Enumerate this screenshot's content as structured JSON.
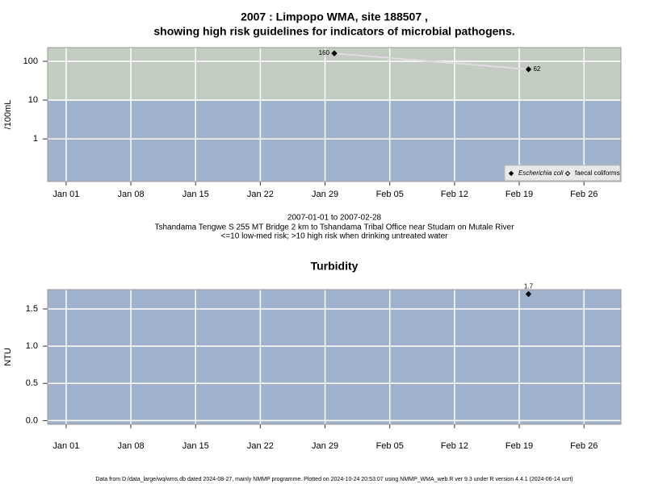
{
  "chart_data": [
    {
      "type": "scatter",
      "log_y": true,
      "title": [
        "2007 : Limpopo WMA, site 188507 ,",
        "showing high risk guidelines for indicators of microbial pathogens."
      ],
      "ylabel": "/100mL",
      "caption": [
        "2007-01-01 to 2007-02-28",
        "Tshandama Tengwe S 255 MT Bridge 2 km to Tshandama Tribal Office near Studam on Mutale River",
        "<=10 low-med risk; >10 high risk when drinking untreated water"
      ],
      "x": [
        "Jan 30",
        "Feb 20"
      ],
      "series": [
        {
          "name": "Escherichia coli",
          "color": "#000000",
          "marker": "filled",
          "line_color": "#dddddd",
          "values": [
            160,
            62
          ]
        },
        {
          "name": "faecal coliforms",
          "color": "#000000",
          "marker": "open",
          "values": [
            null,
            null
          ]
        }
      ],
      "xlim": [
        "Dec 30",
        "Mar 02"
      ],
      "xticks": [
        "Jan 01",
        "Jan 08",
        "Jan 15",
        "Jan 22",
        "Jan 29",
        "Feb 05",
        "Feb 12",
        "Feb 19",
        "Feb 26"
      ],
      "ylim": [
        0.08,
        225
      ],
      "yticks": [
        1,
        10,
        100
      ],
      "bands": {
        "threshold": 10,
        "above": "#c2ccc0",
        "below": "#a1b3cc"
      },
      "grid": true,
      "legend": "bottom-right"
    },
    {
      "type": "scatter",
      "log_y": false,
      "title": [
        "Turbidity"
      ],
      "ylabel": "NTU",
      "x": [
        "Feb 20"
      ],
      "series": [
        {
          "name": "Turbidity",
          "color": "#000000",
          "marker": "filled",
          "values": [
            1.7
          ]
        }
      ],
      "xlim": [
        "Dec 30",
        "Mar 02"
      ],
      "xticks": [
        "Jan 01",
        "Jan 08",
        "Jan 15",
        "Jan 22",
        "Jan 29",
        "Feb 05",
        "Feb 12",
        "Feb 19",
        "Feb 26"
      ],
      "ylim": [
        -0.05,
        1.76
      ],
      "yticks": [
        {
          "value": 0,
          "label": "0.0"
        },
        {
          "value": 0.5,
          "label": "0.5"
        },
        {
          "value": 1,
          "label": "1.0"
        },
        {
          "value": 1.5,
          "label": "1.5"
        }
      ],
      "background": "#a1b3cc",
      "grid": true,
      "legend": "none"
    }
  ],
  "footer": "Data from D:/data_large/wq/wms.db dated 2024-08-27, mainly NMMP programme. Plotted on 2024-10-24 20:53:07 using NMMP_WMA_web.R ver 9.3 under R version 4.4.1 (2024-06-14 ucrt)"
}
